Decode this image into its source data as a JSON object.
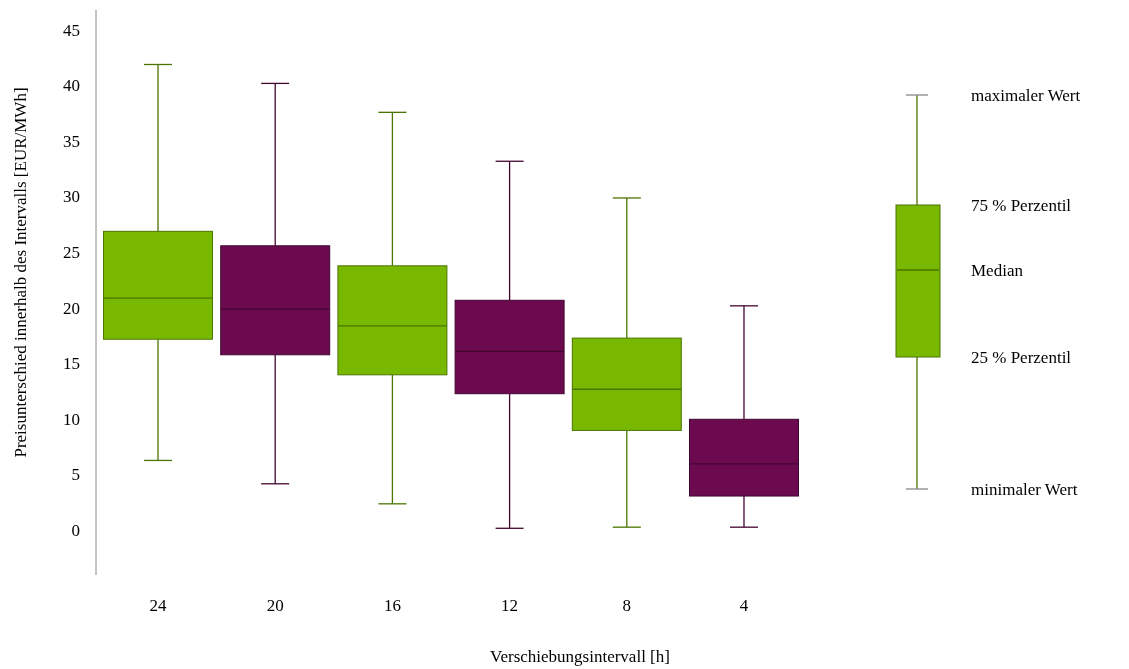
{
  "chart_data": {
    "type": "box",
    "xlabel": "Verschiebungsintervall [h]",
    "ylabel": "Preisunterschied innerhalb des Intervalls [EUR/MWh]",
    "categories": [
      "24",
      "20",
      "16",
      "12",
      "8",
      "4"
    ],
    "colors": [
      "#78b800",
      "#6b0a4e",
      "#78b800",
      "#6b0a4e",
      "#78b800",
      "#6b0a4e"
    ],
    "boxes": [
      {
        "low": 6.3,
        "q1": 17.2,
        "median": 20.9,
        "q3": 26.9,
        "high": 41.9
      },
      {
        "low": 4.2,
        "q1": 15.8,
        "median": 19.9,
        "q3": 25.6,
        "high": 40.2
      },
      {
        "low": 2.4,
        "q1": 14.0,
        "median": 18.4,
        "q3": 23.8,
        "high": 37.6
      },
      {
        "low": 0.2,
        "q1": 12.3,
        "median": 16.1,
        "q3": 20.7,
        "high": 33.2
      },
      {
        "low": 0.3,
        "q1": 9.0,
        "median": 12.7,
        "q3": 17.3,
        "high": 29.9
      },
      {
        "low": 0.3,
        "q1": 3.1,
        "median": 6.0,
        "q3": 10.0,
        "high": 20.2
      }
    ],
    "ylim": [
      -4,
      46.8
    ],
    "yticks": [
      0,
      5,
      10,
      15,
      20,
      25,
      30,
      35,
      40,
      45
    ],
    "annotations": [
      "maximaler Wert",
      "75 % Perzentil",
      "Median",
      "25 % Perzentil",
      "minimaler Wert"
    ]
  }
}
